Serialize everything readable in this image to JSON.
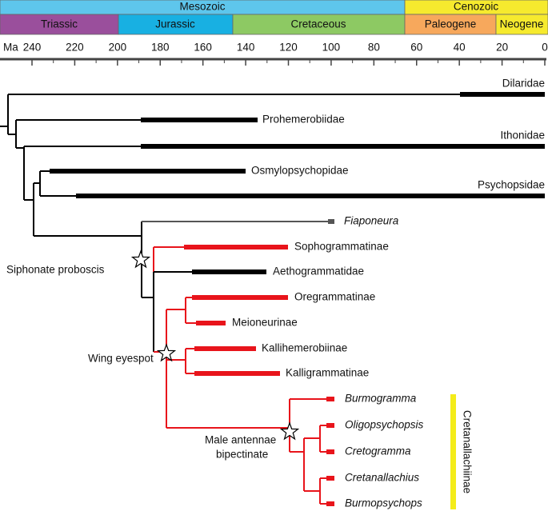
{
  "timescale": {
    "eras": [
      "Mesozoic",
      "Cenozoic"
    ],
    "periods": [
      "Triassic",
      "Jurassic",
      "Cretaceous",
      "Paleogene",
      "Neogene"
    ]
  },
  "axis": {
    "unit": "Ma",
    "ticks": [
      240,
      220,
      200,
      180,
      160,
      140,
      120,
      100,
      80,
      60,
      40,
      20,
      0
    ]
  },
  "taxa": [
    {
      "label": "Dilaridae"
    },
    {
      "label": "Prohemerobiidae"
    },
    {
      "label": "Ithonidae"
    },
    {
      "label": "Osmylopsychopidae"
    },
    {
      "label": "Psychopsidae"
    },
    {
      "label": "Fiaponeura",
      "italic": true
    },
    {
      "label": "Sophogrammatinae"
    },
    {
      "label": "Aethogrammatidae"
    },
    {
      "label": "Oregrammatinae"
    },
    {
      "label": "Meioneurinae"
    },
    {
      "label": "Kallihemerobiinae"
    },
    {
      "label": "Kalligrammatinae"
    },
    {
      "label": "Burmogramma",
      "italic": true
    },
    {
      "label": "Oligopsychopsis",
      "italic": true
    },
    {
      "label": "Cretogramma",
      "italic": true
    },
    {
      "label": "Cretanallachius",
      "italic": true
    },
    {
      "label": "Burmopsychops",
      "italic": true
    }
  ],
  "annotations": [
    [
      "Siphonate proboscis"
    ],
    [
      "Wing eyespot"
    ],
    [
      "Male antennae",
      "bipectinate"
    ]
  ],
  "clade_label": "Cretanallachiinae"
}
